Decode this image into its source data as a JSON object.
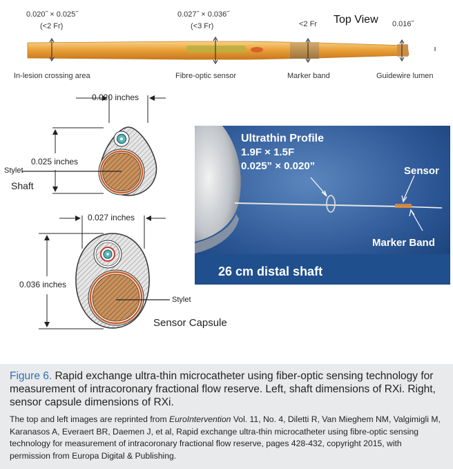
{
  "top_view": {
    "title": "Top View",
    "dims": {
      "left_main": "0.020˝ × 0.025˝",
      "left_sub": "(<2 Fr)",
      "mid_main": "0.027˝ × 0.036˝",
      "mid_sub": "(<3 Fr)",
      "marker": "<2 Fr",
      "tip": "0.016˝"
    },
    "labels": {
      "crossing": "In-lesion crossing area",
      "sensor": "Fibre-optic sensor",
      "marker": "Marker band",
      "lumen": "Guidewire lumen"
    }
  },
  "shaft_section": {
    "width_dim": "0.020 inches",
    "height_dim": "0.025 inches",
    "stylet": "Stylet",
    "name": "Shaft"
  },
  "capsule_section": {
    "width_dim": "0.027 inches",
    "height_dim": "0.036 inches",
    "stylet": "Stylet",
    "name": "Sensor Capsule"
  },
  "photo": {
    "profile_title": "Ultrathin Profile",
    "profile_size1": "1.9F × 1.5F",
    "profile_size2": "0.025” × 0.020”",
    "sensor": "Sensor",
    "marker_band": "Marker Band",
    "banner": "26 cm distal shaft"
  },
  "caption": {
    "figure_label": "Figure 6.",
    "text": " Rapid exchange ultra-thin microcatheter using fiber-optic sensing technology for measurement of intracoronary fractional flow reserve. Left, shaft dimensions of RXi. Right, sensor capsule dimensions of RXi.",
    "credit_pre": "The top and left images are reprinted from ",
    "credit_journal": "EuroIntervention",
    "credit_post": " Vol. 11, No. 4, Diletti R, Van Mieghem NM, Valgimigli M, Karanasos A, Everaert BR, Daemen J, et al, Rapid exchange ultra-thin microcatheter using fibre-optic sensing technology for measurement of intracoronary fractional flow reserve, pages 428-432, copyright 2015, with permission from Europa Digital & Publishing."
  },
  "colors": {
    "catheter": "#e8a030",
    "caption_bg": "#e9eaeb",
    "figure_label": "#2f6eb5",
    "photo_banner": "#1f4f8c"
  }
}
